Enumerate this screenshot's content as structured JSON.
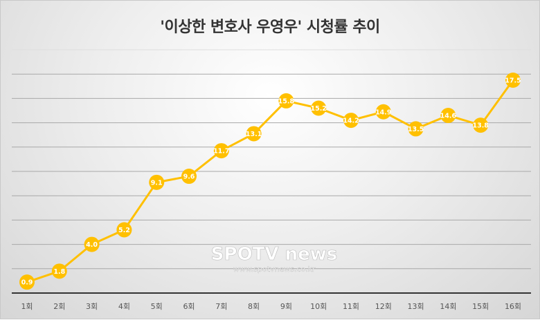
{
  "chart_data": {
    "type": "line",
    "title": "'이상한 변호사 우영우' 시청률 추이",
    "categories": [
      "1회",
      "2회",
      "3회",
      "4회",
      "5회",
      "6회",
      "7회",
      "8회",
      "9회",
      "10회",
      "11회",
      "12회",
      "13회",
      "14회",
      "15회",
      "16회"
    ],
    "series": [
      {
        "name": "시청률",
        "values": [
          0.9,
          1.8,
          4.0,
          5.2,
          9.1,
          9.6,
          11.7,
          13.1,
          15.8,
          15.2,
          14.2,
          14.9,
          13.5,
          14.6,
          13.8,
          17.5
        ]
      }
    ],
    "data_labels": [
      "0.9",
      "1.8",
      "4.0",
      "5.2",
      "9.1",
      "9.6",
      "11.7",
      "13.1",
      "15.8",
      "15.2",
      "14.2",
      "14.9",
      "13.5",
      "14.6",
      "13.8",
      "17.5"
    ],
    "xlabel": "",
    "ylabel": "",
    "ylim": [
      0,
      20
    ],
    "ytick_step": 2,
    "grid": true,
    "legend": "none",
    "color": "#FFC000",
    "watermark": {
      "logo": "SPOTV news",
      "url": "www.spotvnews.co.kr"
    }
  }
}
